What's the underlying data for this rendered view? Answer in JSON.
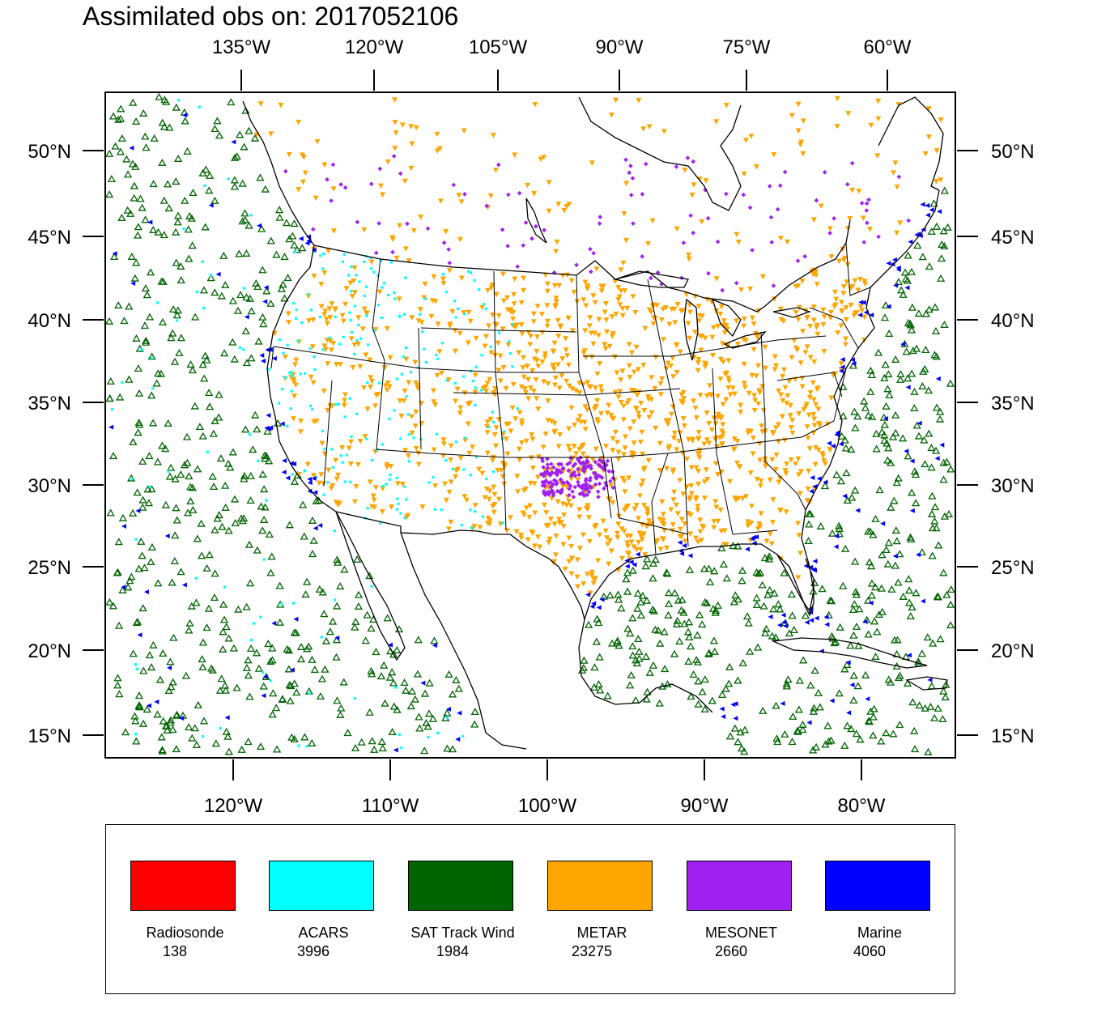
{
  "title": "Assimilated obs on: 2017052106",
  "map": {
    "top_lon_labels": [
      "135°W",
      "120°W",
      "105°W",
      "90°W",
      "75°W",
      "60°W"
    ],
    "bottom_lon_labels": [
      "120°W",
      "110°W",
      "100°W",
      "90°W",
      "80°W"
    ],
    "lat_labels": [
      "50°N",
      "45°N",
      "40°N",
      "35°N",
      "30°N",
      "25°N",
      "20°N",
      "15°N"
    ]
  },
  "legend": [
    {
      "name": "Radiosonde",
      "count": "138",
      "color": "#ff0000",
      "symbol": "dot"
    },
    {
      "name": "ACARS",
      "count": "3996",
      "color": "#00ffff",
      "symbol": "square"
    },
    {
      "name": "SAT Track Wind",
      "count": "1984",
      "color": "#006400",
      "symbol": "triangle-up"
    },
    {
      "name": "METAR",
      "count": "23275",
      "color": "#ffa500",
      "symbol": "triangle-down"
    },
    {
      "name": "MESONET",
      "count": "2660",
      "color": "#a020f0",
      "symbol": "diamond"
    },
    {
      "name": "Marine",
      "count": "4060",
      "color": "#0000ff",
      "symbol": "triangle-left"
    }
  ]
}
